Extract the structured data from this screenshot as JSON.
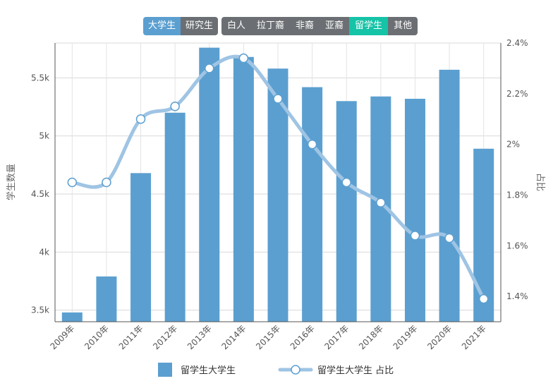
{
  "level_toggle": {
    "buttons": [
      {
        "label": "大学生",
        "active": true
      },
      {
        "label": "研究生",
        "active": false
      }
    ]
  },
  "group_toggle": {
    "buttons": [
      {
        "label": "白人",
        "active": false
      },
      {
        "label": "拉丁裔",
        "active": false
      },
      {
        "label": "非裔",
        "active": false
      },
      {
        "label": "亚裔",
        "active": false
      },
      {
        "label": "留学生",
        "active": true
      },
      {
        "label": "其他",
        "active": false
      }
    ]
  },
  "colors": {
    "bar": "#5b9fd0",
    "line": "#9fc4e4",
    "toggle_inactive": "#6b6f73",
    "toggle_active_blue": "#5b9fd0",
    "toggle_active_teal": "#15c3a7"
  },
  "chart_data": {
    "type": "bar",
    "categories": [
      "2009年",
      "2010年",
      "2011年",
      "2012年",
      "2013年",
      "2014年",
      "2015年",
      "2016年",
      "2017年",
      "2018年",
      "2019年",
      "2020年",
      "2021年"
    ],
    "series": [
      {
        "name": "留学生大学生",
        "type": "bar",
        "axis": "left",
        "values": [
          3480,
          3790,
          4680,
          5200,
          5760,
          5680,
          5580,
          5420,
          5300,
          5340,
          5320,
          5570,
          4890
        ]
      },
      {
        "name": "留学生大学生 占比",
        "type": "line",
        "axis": "right",
        "values": [
          1.85,
          1.85,
          2.1,
          2.15,
          2.3,
          2.34,
          2.18,
          2.0,
          1.85,
          1.77,
          1.64,
          1.63,
          1.39
        ]
      }
    ],
    "y_left": {
      "label": "学生数量",
      "ticks": [
        "3.5k",
        "4k",
        "4.5k",
        "5k",
        "5.5k"
      ],
      "tick_values": [
        3500,
        4000,
        4500,
        5000,
        5500
      ],
      "range": [
        3400,
        5800
      ]
    },
    "y_right": {
      "label": "占比",
      "ticks": [
        "1.4%",
        "1.6%",
        "1.8%",
        "2%",
        "2.2%",
        "2.4%"
      ],
      "tick_values": [
        1.4,
        1.6,
        1.8,
        2.0,
        2.2,
        2.4
      ],
      "range": [
        1.3,
        2.4
      ]
    },
    "grid": true,
    "legend_position": "bottom"
  }
}
